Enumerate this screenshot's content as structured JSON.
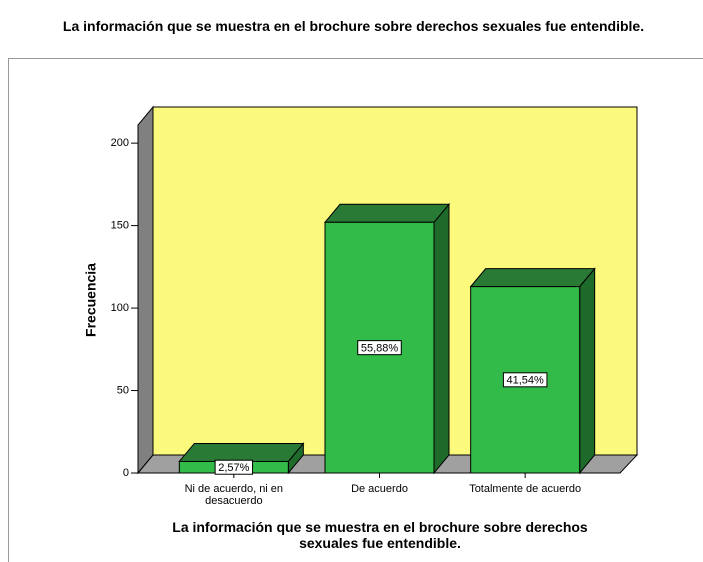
{
  "chart_data": {
    "type": "bar3d",
    "title": "La información que se muestra en el brochure sobre derechos sexuales fue entendible.",
    "x_label": "La información que se muestra en el brochure sobre derechos sexuales fue entendible.",
    "y_label": "Frecuencia",
    "categories": [
      "Ni de acuerdo, ni en desacuerdo",
      "De acuerdo",
      "Totalmente de acuerdo"
    ],
    "values": [
      7,
      152,
      113
    ],
    "bar_labels": [
      "2,57%",
      "55,88%",
      "41,54%"
    ],
    "color": "#33bb4a",
    "ylim": [
      0,
      211
    ],
    "yticks": [
      0,
      50,
      100,
      150,
      200
    ]
  }
}
